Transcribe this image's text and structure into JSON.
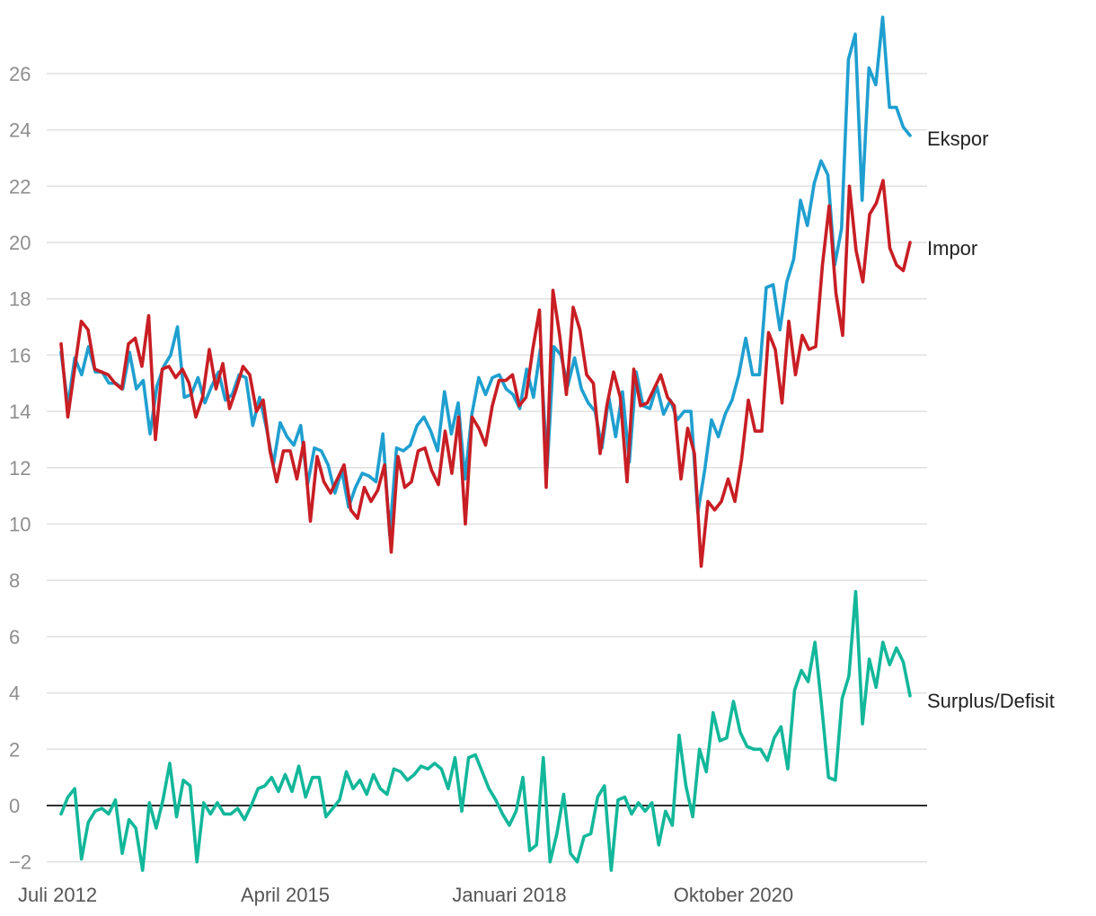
{
  "chart_data": {
    "type": "line",
    "title": "",
    "xlabel": "",
    "ylabel": "",
    "x_start": "2012-07",
    "x_end": "2022-12",
    "ylim": [
      -2.5,
      28
    ],
    "y_ticks": [
      -2,
      0,
      2,
      4,
      6,
      8,
      10,
      12,
      14,
      16,
      18,
      20,
      22,
      24,
      26
    ],
    "y_tick_labels": [
      "−2",
      "0",
      "2",
      "4",
      "6",
      "8",
      "10",
      "12",
      "14",
      "16",
      "18",
      "20",
      "22",
      "24",
      "26"
    ],
    "x_ticks": [
      {
        "label": "Juli 2012",
        "date": "2012-07"
      },
      {
        "label": "April 2015",
        "date": "2015-04"
      },
      {
        "label": "Januari 2018",
        "date": "2018-01"
      },
      {
        "label": "Oktober 2020",
        "date": "2020-10"
      }
    ],
    "grid": true,
    "series": [
      {
        "name": "Ekspor",
        "color": "#1f9fd0",
        "values": [
          16.1,
          14.2,
          15.9,
          15.3,
          16.3,
          15.4,
          15.4,
          15.0,
          15.0,
          14.8,
          16.1,
          14.8,
          15.1,
          13.2,
          14.9,
          15.6,
          16.0,
          17.0,
          14.5,
          14.6,
          15.2,
          14.3,
          14.9,
          15.4,
          14.4,
          14.6,
          15.3,
          15.2,
          13.5,
          14.5,
          13.4,
          12.1,
          13.6,
          13.1,
          12.8,
          13.5,
          11.4,
          12.7,
          12.6,
          12.1,
          11.1,
          11.9,
          10.6,
          11.3,
          11.8,
          11.7,
          11.5,
          13.2,
          9.6,
          12.7,
          12.6,
          12.8,
          13.5,
          13.8,
          13.3,
          12.6,
          14.7,
          13.2,
          14.3,
          11.6,
          13.9,
          15.2,
          14.6,
          15.2,
          15.3,
          14.8,
          14.6,
          14.1,
          15.5,
          14.5,
          16.2,
          12.0,
          16.3,
          16.0,
          14.9,
          15.9,
          14.8,
          14.3,
          14.0,
          12.7,
          14.5,
          13.1,
          14.7,
          12.2,
          15.4,
          14.2,
          14.1,
          14.9,
          13.9,
          14.4,
          13.7,
          14.0,
          14.0,
          10.4,
          11.9,
          13.7,
          13.1,
          13.9,
          14.4,
          15.3,
          16.6,
          15.3,
          15.3,
          18.4,
          18.5,
          16.9,
          18.6,
          19.4,
          21.5,
          20.6,
          22.1,
          22.9,
          22.4,
          19.2,
          20.5,
          26.5,
          27.4,
          21.5,
          26.2,
          25.6,
          28.0,
          24.8,
          24.8,
          24.1,
          23.8
        ]
      },
      {
        "name": "Impor",
        "color": "#c81e24",
        "values": [
          16.4,
          13.8,
          15.5,
          17.2,
          16.9,
          15.5,
          15.4,
          15.3,
          15.0,
          14.8,
          16.4,
          16.6,
          15.6,
          17.4,
          13.0,
          15.5,
          15.6,
          15.2,
          15.5,
          15.0,
          13.8,
          14.5,
          16.2,
          14.8,
          15.7,
          14.1,
          14.8,
          15.6,
          15.3,
          14.0,
          14.4,
          12.6,
          11.5,
          12.6,
          12.6,
          11.6,
          12.9,
          10.1,
          12.4,
          11.5,
          11.1,
          11.6,
          12.1,
          10.5,
          10.2,
          11.3,
          10.8,
          11.2,
          12.1,
          9.0,
          12.4,
          11.3,
          11.5,
          12.6,
          12.7,
          11.9,
          11.4,
          13.3,
          11.8,
          13.8,
          10.0,
          13.8,
          13.4,
          12.8,
          14.2,
          15.1,
          15.1,
          15.3,
          14.2,
          14.5,
          16.2,
          17.6,
          11.3,
          18.3,
          16.7,
          14.6,
          17.7,
          16.9,
          15.3,
          15.0,
          12.5,
          14.2,
          15.4,
          14.5,
          11.5,
          15.5,
          14.2,
          14.3,
          14.8,
          15.3,
          14.5,
          14.2,
          11.6,
          13.4,
          12.5,
          8.5,
          10.8,
          10.5,
          10.8,
          11.6,
          10.8,
          12.3,
          14.4,
          13.3,
          13.3,
          16.8,
          16.2,
          14.3,
          17.2,
          15.3,
          16.7,
          16.2,
          16.3,
          19.2,
          21.3,
          18.2,
          16.7,
          22.0,
          19.7,
          18.6,
          21.0,
          21.4,
          22.2,
          19.8,
          19.2,
          19.0,
          20.0
        ]
      },
      {
        "name": "Surplus/Defisit",
        "color": "#13b79a",
        "values": [
          -0.3,
          0.3,
          0.6,
          -1.9,
          -0.6,
          -0.2,
          -0.1,
          -0.3,
          0.2,
          -1.7,
          -0.5,
          -0.8,
          -2.3,
          0.1,
          -0.8,
          0.2,
          1.5,
          -0.4,
          0.9,
          0.7,
          -2.0,
          0.1,
          -0.3,
          0.1,
          -0.3,
          -0.3,
          -0.1,
          -0.5,
          0.0,
          0.6,
          0.7,
          1.0,
          0.5,
          1.1,
          0.5,
          1.4,
          0.3,
          1.0,
          1.0,
          -0.4,
          -0.1,
          0.2,
          1.2,
          0.6,
          0.9,
          0.4,
          1.1,
          0.6,
          0.4,
          1.3,
          1.2,
          0.9,
          1.1,
          1.4,
          1.3,
          1.5,
          1.3,
          0.6,
          1.7,
          -0.2,
          1.7,
          1.8,
          1.2,
          0.6,
          0.2,
          -0.3,
          -0.7,
          -0.2,
          1.0,
          -1.6,
          -1.4,
          1.7,
          -2.0,
          -1.0,
          0.4,
          -1.7,
          -2.0,
          -1.1,
          -1.0,
          0.3,
          0.7,
          -2.3,
          0.2,
          0.3,
          -0.3,
          0.1,
          -0.2,
          0.1,
          -1.4,
          -0.2,
          -0.7,
          2.5,
          0.7,
          -0.4,
          2.0,
          1.2,
          3.3,
          2.3,
          2.4,
          3.7,
          2.6,
          2.1,
          2.0,
          2.0,
          1.6,
          2.4,
          2.8,
          1.3,
          4.1,
          4.8,
          4.4,
          5.8,
          3.5,
          1.0,
          0.9,
          3.8,
          4.6,
          7.6,
          2.9,
          5.2,
          4.2,
          5.8,
          5.0,
          5.6,
          5.1,
          3.9
        ]
      }
    ]
  }
}
